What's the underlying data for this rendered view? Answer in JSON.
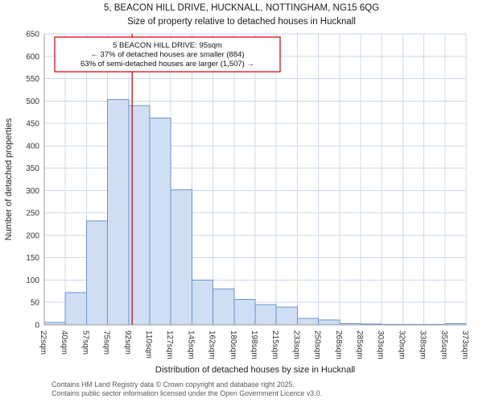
{
  "title": "5, BEACON HILL DRIVE, HUCKNALL, NOTTINGHAM, NG15 6QG",
  "subtitle": "Size of property relative to detached houses in Hucknall",
  "footer": {
    "line1": "Contains HM Land Registry data © Crown copyright and database right 2025.",
    "line2": "Contains public sector information licensed under the Open Government Licence v3.0."
  },
  "chart_data": {
    "type": "bar",
    "title": "5, BEACON HILL DRIVE, HUCKNALL, NOTTINGHAM, NG15 6QG",
    "subtitle": "Size of property relative to detached houses in Hucknall",
    "xlabel": "Distribution of detached houses by size in Hucknall",
    "ylabel": "Number of detached properties",
    "x_tick_labels": [
      "22sqm",
      "40sqm",
      "57sqm",
      "75sqm",
      "92sqm",
      "110sqm",
      "127sqm",
      "145sqm",
      "162sqm",
      "180sqm",
      "198sqm",
      "215sqm",
      "233sqm",
      "250sqm",
      "268sqm",
      "285sqm",
      "303sqm",
      "320sqm",
      "338sqm",
      "355sqm",
      "373sqm"
    ],
    "bin_edges": [
      22,
      40,
      57,
      75,
      92,
      110,
      127,
      145,
      162,
      180,
      198,
      215,
      233,
      250,
      268,
      285,
      303,
      320,
      338,
      355,
      373
    ],
    "values": [
      5,
      72,
      232,
      503,
      490,
      462,
      302,
      100,
      80,
      57,
      45,
      40,
      14,
      11,
      3,
      2,
      1,
      1,
      1,
      3
    ],
    "ylim": [
      0,
      650
    ],
    "ytick_step": 50,
    "grid": true,
    "legend": "none",
    "bar_fill": "#cfdef2",
    "bar_stroke": "#6a96ce",
    "grid_color": "#ccd9ec",
    "axis_color": "#999999",
    "marker": {
      "value": 95,
      "color": "#aa0000"
    },
    "annotation": {
      "lines": [
        "5 BEACON HILL DRIVE: 95sqm",
        "← 37% of detached houses are smaller (884)",
        "63% of semi-detached houses are larger (1,507) →"
      ],
      "border_color": "#cc0000",
      "text_color": "#111111"
    }
  }
}
